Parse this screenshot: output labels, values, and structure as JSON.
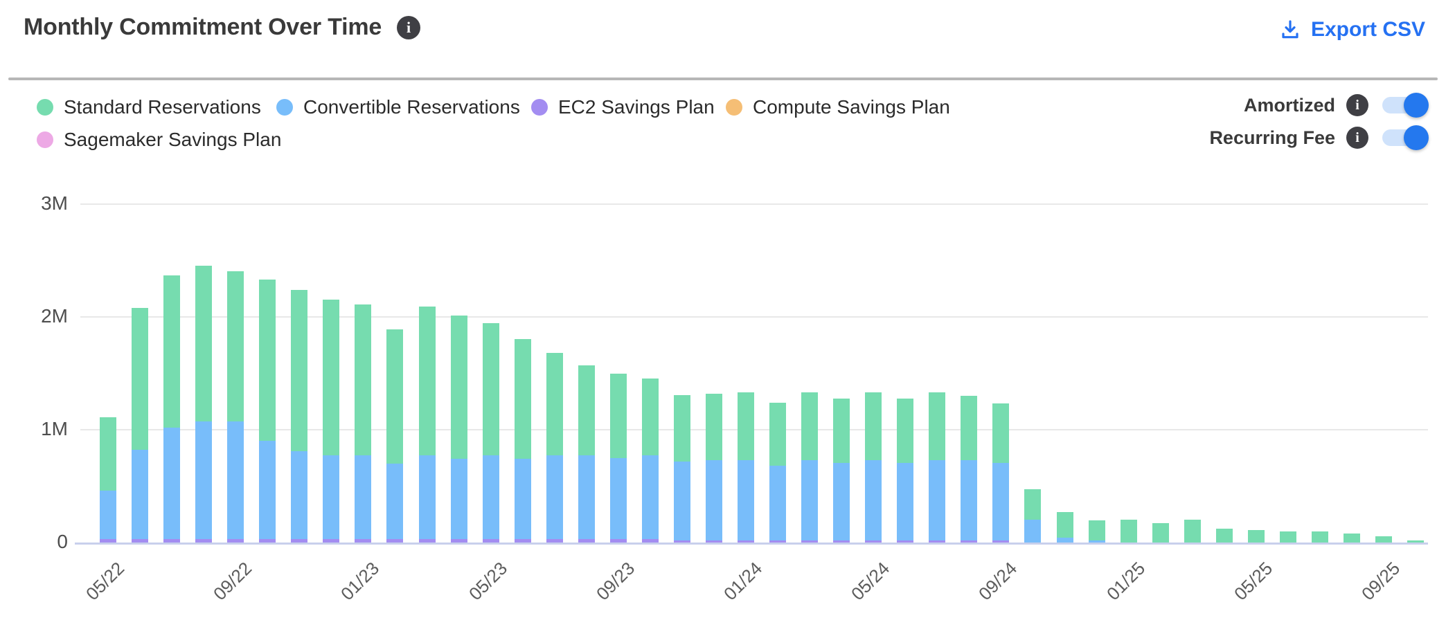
{
  "header": {
    "title": "Monthly Commitment Over Time",
    "title_info_icon": "i",
    "export_label": "Export CSV"
  },
  "legend": {
    "items": [
      {
        "label": "Standard Reservations",
        "color": "#76dcaf"
      },
      {
        "label": "Convertible Reservations",
        "color": "#78bdfa"
      },
      {
        "label": "EC2 Savings Plan",
        "color": "#a38df1"
      },
      {
        "label": "Compute Savings Plan",
        "color": "#f5be75"
      },
      {
        "label": "Sagemaker Savings Plan",
        "color": "#eda9e5"
      }
    ]
  },
  "toggles": [
    {
      "label": "Amortized",
      "info_icon": "i",
      "state": "on"
    },
    {
      "label": "Recurring Fee",
      "info_icon": "i",
      "state": "on"
    }
  ],
  "colors": {
    "link_blue": "#2571f2",
    "toggle_on": "#2478ee",
    "toggle_track": "#cfe2fb",
    "info_icon_bg": "#3f3f44",
    "gridline": "#e8e8e8",
    "axis_line": "#c8d0ec",
    "title_text": "#3a3a3a",
    "axis_text": "#4d4d4d"
  },
  "chart_data": {
    "type": "bar",
    "stacked": true,
    "values_unit": "millions",
    "ylim": [
      0,
      3000000
    ],
    "y_tick_labels": [
      "0",
      "1M",
      "2M",
      "3M"
    ],
    "y_tick_values_m": [
      0,
      1,
      2,
      3
    ],
    "grid": "horizontal",
    "legend_position": "top-left",
    "x": [
      "05/22",
      "06/22",
      "07/22",
      "08/22",
      "09/22",
      "10/22",
      "11/22",
      "12/22",
      "01/23",
      "02/23",
      "03/23",
      "04/23",
      "05/23",
      "06/23",
      "07/23",
      "08/23",
      "09/23",
      "10/23",
      "11/23",
      "12/23",
      "01/24",
      "02/24",
      "03/24",
      "04/24",
      "05/24",
      "06/24",
      "07/24",
      "08/24",
      "09/24",
      "10/24",
      "11/24",
      "12/24",
      "01/25",
      "02/25",
      "03/25",
      "04/25",
      "05/25",
      "06/25",
      "07/25",
      "08/25",
      "09/25",
      "10/25"
    ],
    "x_tick_labels": [
      "05/22",
      "09/22",
      "01/23",
      "05/23",
      "09/23",
      "01/24",
      "05/24",
      "09/24",
      "01/25",
      "05/25",
      "09/25"
    ],
    "x_tick_every": 4,
    "stack_order_bottom_to_top": [
      "EC2 Savings Plan",
      "Convertible Reservations",
      "Standard Reservations"
    ],
    "series": [
      {
        "name": "Standard Reservations",
        "color": "#76dcaf",
        "values_m": [
          0.65,
          1.26,
          1.35,
          1.38,
          1.33,
          1.43,
          1.43,
          1.38,
          1.34,
          1.19,
          1.32,
          1.27,
          1.17,
          1.06,
          0.91,
          0.8,
          0.75,
          0.68,
          0.59,
          0.59,
          0.6,
          0.56,
          0.6,
          0.57,
          0.6,
          0.57,
          0.6,
          0.57,
          0.53,
          0.27,
          0.23,
          0.18,
          0.2,
          0.17,
          0.2,
          0.12,
          0.11,
          0.1,
          0.1,
          0.08,
          0.055,
          0.02
        ]
      },
      {
        "name": "Convertible Reservations",
        "color": "#78bdfa",
        "values_m": [
          0.43,
          0.79,
          0.99,
          1.04,
          1.04,
          0.87,
          0.78,
          0.74,
          0.74,
          0.67,
          0.74,
          0.71,
          0.74,
          0.71,
          0.74,
          0.74,
          0.72,
          0.74,
          0.7,
          0.71,
          0.71,
          0.66,
          0.71,
          0.69,
          0.71,
          0.69,
          0.71,
          0.71,
          0.69,
          0.2,
          0.04,
          0.02,
          0,
          0,
          0,
          0,
          0,
          0,
          0,
          0,
          0,
          0
        ]
      },
      {
        "name": "EC2 Savings Plan",
        "color": "#a38df1",
        "values_m": [
          0.03,
          0.03,
          0.03,
          0.03,
          0.03,
          0.03,
          0.03,
          0.03,
          0.03,
          0.03,
          0.03,
          0.03,
          0.03,
          0.03,
          0.03,
          0.03,
          0.03,
          0.03,
          0.02,
          0.02,
          0.02,
          0.02,
          0.02,
          0.02,
          0.02,
          0.02,
          0.02,
          0.02,
          0.02,
          0,
          0,
          0,
          0,
          0,
          0,
          0,
          0,
          0,
          0,
          0,
          0,
          0
        ]
      },
      {
        "name": "Compute Savings Plan",
        "color": "#f5be75",
        "values_m": [
          0,
          0,
          0,
          0,
          0,
          0,
          0,
          0,
          0,
          0,
          0,
          0,
          0,
          0,
          0,
          0,
          0,
          0,
          0,
          0,
          0,
          0,
          0,
          0,
          0,
          0,
          0,
          0,
          0,
          0,
          0,
          0,
          0,
          0,
          0,
          0,
          0,
          0,
          0,
          0,
          0,
          0
        ]
      },
      {
        "name": "Sagemaker Savings Plan",
        "color": "#eda9e5",
        "values_m": [
          0,
          0,
          0,
          0,
          0,
          0,
          0,
          0,
          0,
          0,
          0,
          0,
          0,
          0,
          0,
          0,
          0,
          0,
          0,
          0,
          0,
          0,
          0,
          0,
          0,
          0,
          0,
          0,
          0,
          0,
          0,
          0,
          0,
          0,
          0,
          0,
          0,
          0,
          0,
          0,
          0,
          0
        ]
      }
    ]
  }
}
